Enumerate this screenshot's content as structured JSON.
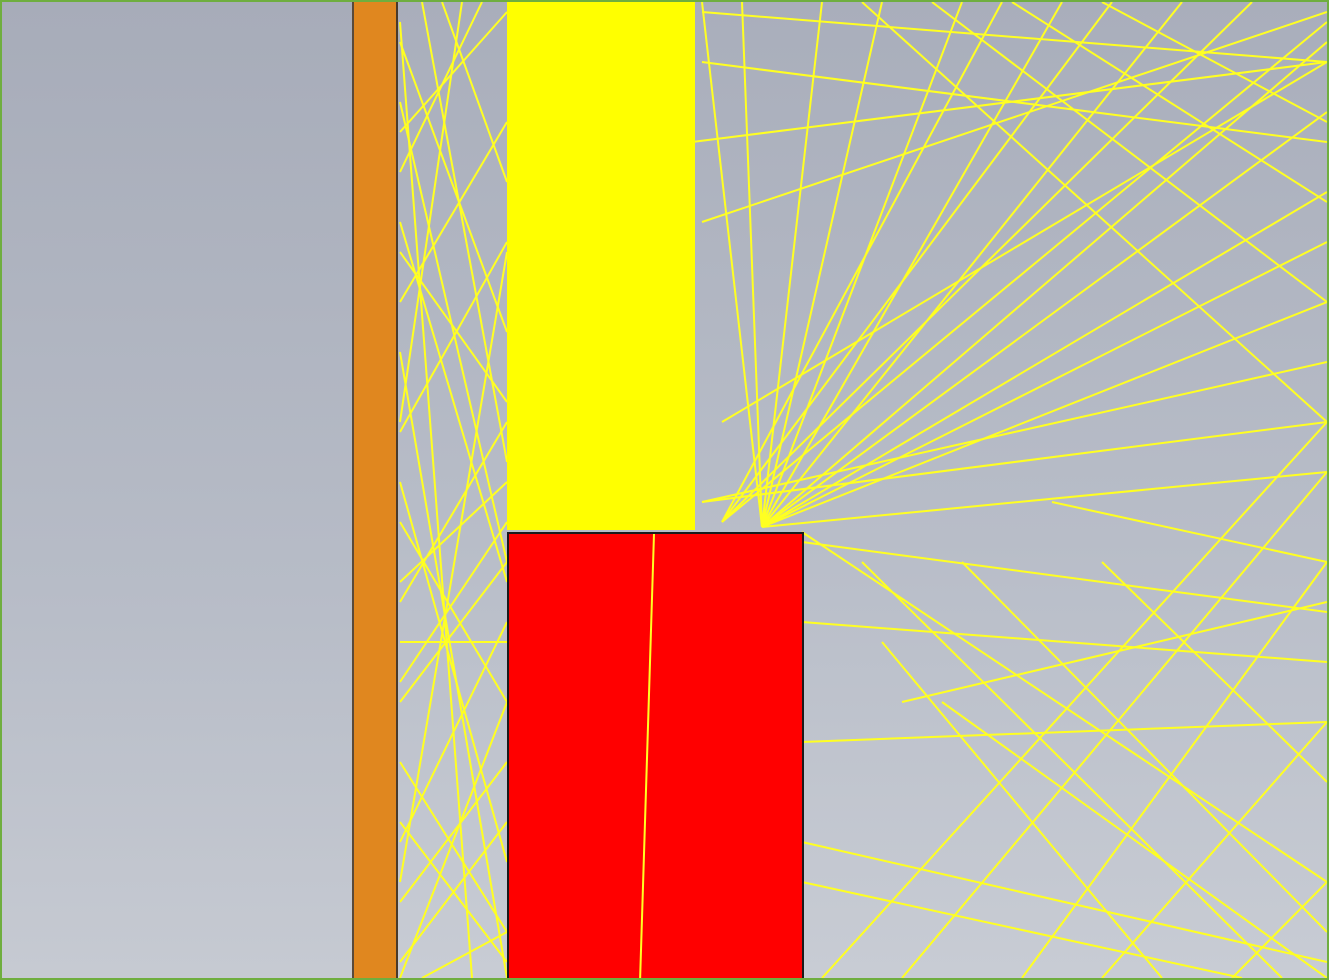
{
  "scene": {
    "colors": {
      "frame_border": "#6fae3f",
      "background_top": "#a9aebb",
      "background_bottom": "#c8ccd4",
      "plate": "#b0b5c1",
      "orange_bar": "#e0871f",
      "yellow_column": "#ffff00",
      "red_block": "#ff0000",
      "rays": "#ffff22"
    },
    "objects": [
      {
        "name": "left-plate",
        "color_key": "plate"
      },
      {
        "name": "orange-bar",
        "color_key": "orange_bar"
      },
      {
        "name": "yellow-column",
        "color_key": "yellow_column"
      },
      {
        "name": "red-block",
        "color_key": "red_block"
      },
      {
        "name": "ray-traces",
        "color_key": "rays"
      }
    ]
  }
}
